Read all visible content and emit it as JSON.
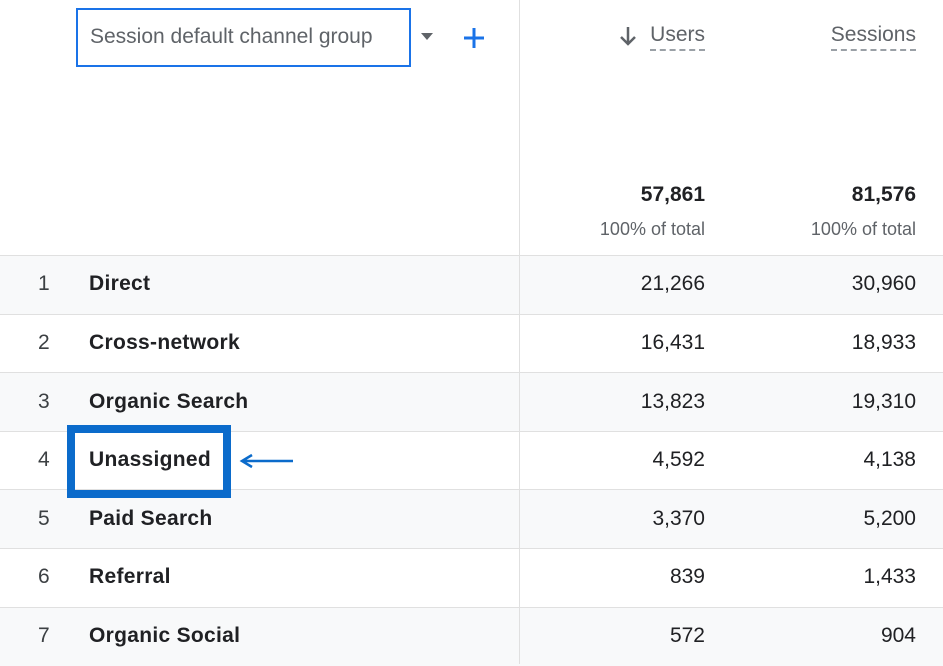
{
  "header": {
    "dimension": "Session default channel group",
    "columns": [
      "Users",
      "Sessions"
    ]
  },
  "totals": [
    {
      "value": "57,861",
      "share": "100% of total"
    },
    {
      "value": "81,576",
      "share": "100% of total"
    }
  ],
  "table": {
    "rows": [
      [
        "1",
        "Direct",
        "21,266",
        "30,960"
      ],
      [
        "2",
        "Cross-network",
        "16,431",
        "18,933"
      ],
      [
        "3",
        "Organic Search",
        "13,823",
        "19,310"
      ],
      [
        "4",
        "Unassigned",
        "4,592",
        "4,138"
      ],
      [
        "5",
        "Paid Search",
        "3,370",
        "5,200"
      ],
      [
        "6",
        "Referral",
        "839",
        "1,433"
      ],
      [
        "7",
        "Organic Social",
        "572",
        "904"
      ]
    ]
  }
}
